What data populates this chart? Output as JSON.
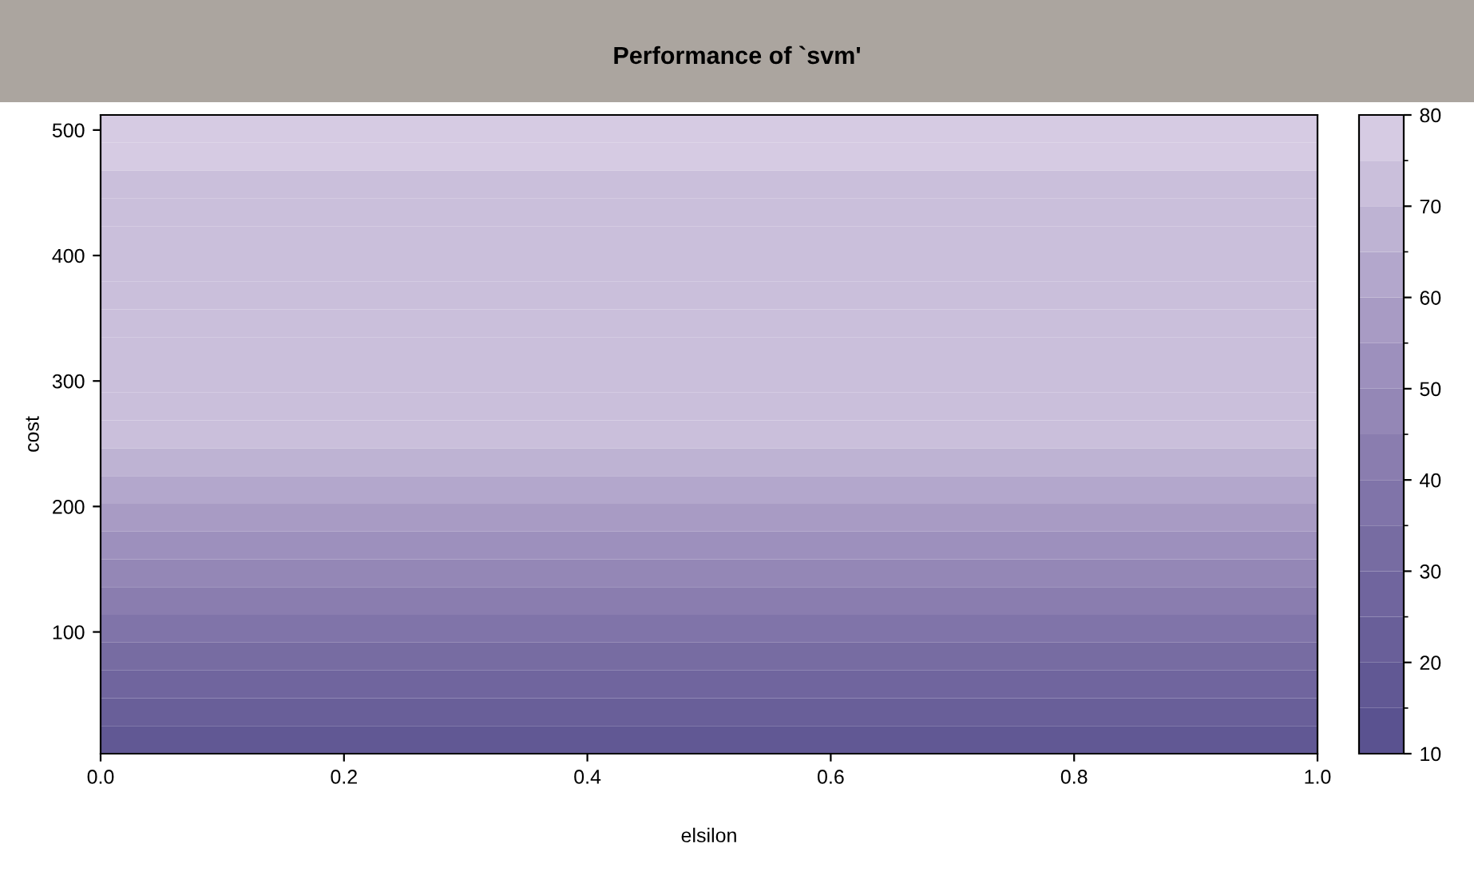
{
  "chart_data": {
    "type": "heatmap",
    "title": "Performance of `svm'",
    "xlabel": "elsilon",
    "ylabel": "cost",
    "cells": [
      [
        77.5
      ],
      [
        77.5
      ],
      [
        72.5
      ],
      [
        72.5
      ],
      [
        72.5
      ],
      [
        72.5
      ],
      [
        72.5
      ],
      [
        72.5
      ],
      [
        72.5
      ],
      [
        72.5
      ],
      [
        72.5
      ],
      [
        72.5
      ],
      [
        67.5
      ],
      [
        62.5
      ],
      [
        57.5
      ],
      [
        52.5
      ],
      [
        47.5
      ],
      [
        42.5
      ],
      [
        37.5
      ],
      [
        32.5
      ],
      [
        27.5
      ],
      [
        22.5
      ],
      [
        17.5
      ]
    ],
    "xlim": [
      0,
      1
    ],
    "ylim": [
      3,
      512
    ],
    "xticks": [
      {
        "value": 0,
        "label": "0.0"
      },
      {
        "value": 0.2,
        "label": "0.2"
      },
      {
        "value": 0.4,
        "label": "0.4"
      },
      {
        "value": 0.6,
        "label": "0.6"
      },
      {
        "value": 0.8,
        "label": "0.8"
      },
      {
        "value": 1,
        "label": "1.0"
      }
    ],
    "yticks": [
      100,
      200,
      300,
      400,
      500
    ],
    "clim": [
      10,
      80
    ],
    "cticks": [
      10,
      20,
      30,
      40,
      50,
      60,
      70,
      80
    ]
  }
}
